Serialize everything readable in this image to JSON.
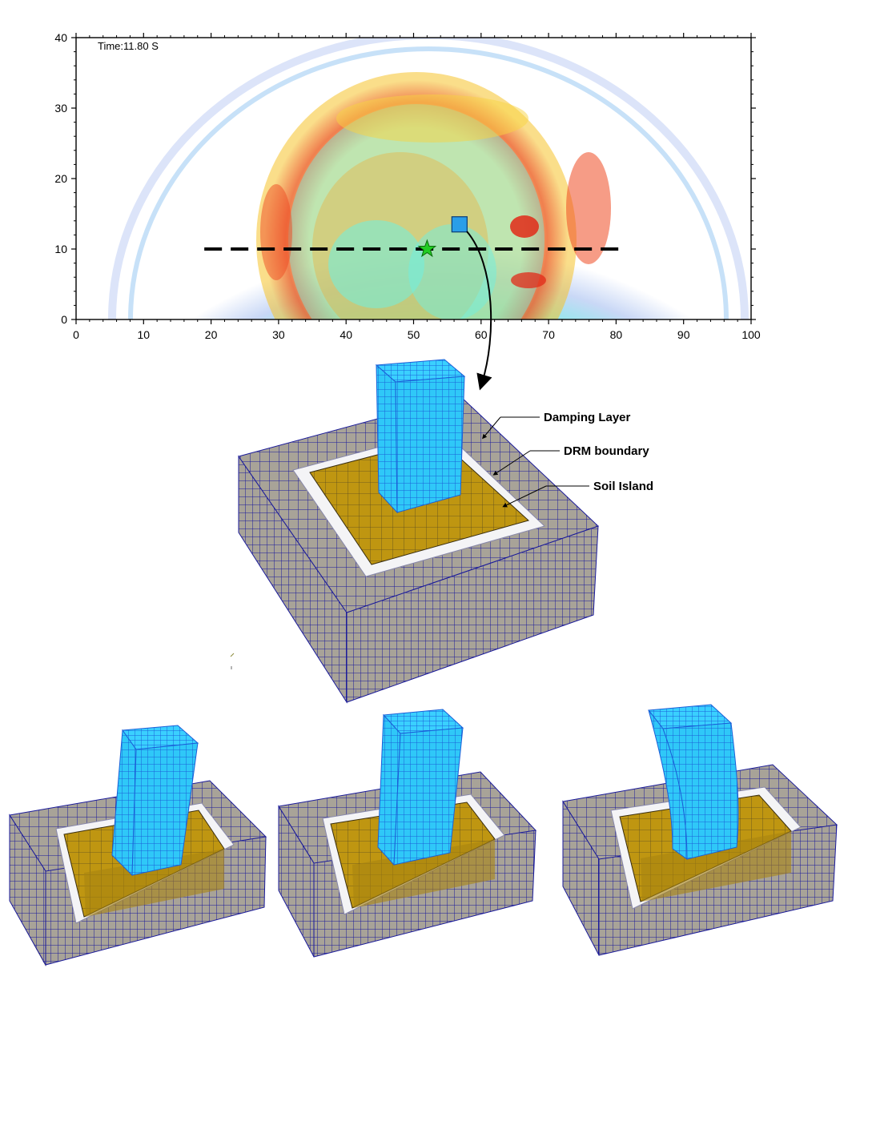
{
  "wavefield_plot": {
    "time_label": "Time:11.80 S",
    "x_axis": {
      "min": 0,
      "max": 100,
      "ticks": [
        "0",
        "10",
        "20",
        "30",
        "40",
        "50",
        "60",
        "70",
        "80",
        "90",
        "100"
      ]
    },
    "y_axis": {
      "min": 0,
      "max": 40,
      "ticks": [
        "0",
        "10",
        "20",
        "30",
        "40"
      ]
    },
    "section_line": {
      "y": 10,
      "x_start": 19,
      "x_end": 81
    },
    "epicenter_marker": {
      "x": 52,
      "y": 10,
      "shape": "star-icon",
      "color": "#22cc22"
    },
    "site_marker": {
      "x": 56.8,
      "y": 13.5,
      "shape": "square",
      "color": "#2a9ee8"
    },
    "colors": {
      "background": "#77f0ec",
      "strong": "#e8321e",
      "medium": "#f4c21e",
      "weak": "#aee860"
    }
  },
  "model": {
    "labels": {
      "damping_layer": "Damping Layer",
      "drm_boundary": "DRM boundary",
      "soil_island": "Soil Island"
    },
    "colors": {
      "damping": "#a8a398",
      "drm": "#f4f4f6",
      "soil": "#bf9611",
      "building": "#2fc8f8",
      "mesh": "#1a1a9a"
    }
  },
  "snapshots": [
    {
      "name": "snapshot-1",
      "sway": "left"
    },
    {
      "name": "snapshot-2",
      "sway": "slight"
    },
    {
      "name": "snapshot-3",
      "sway": "strong"
    }
  ]
}
